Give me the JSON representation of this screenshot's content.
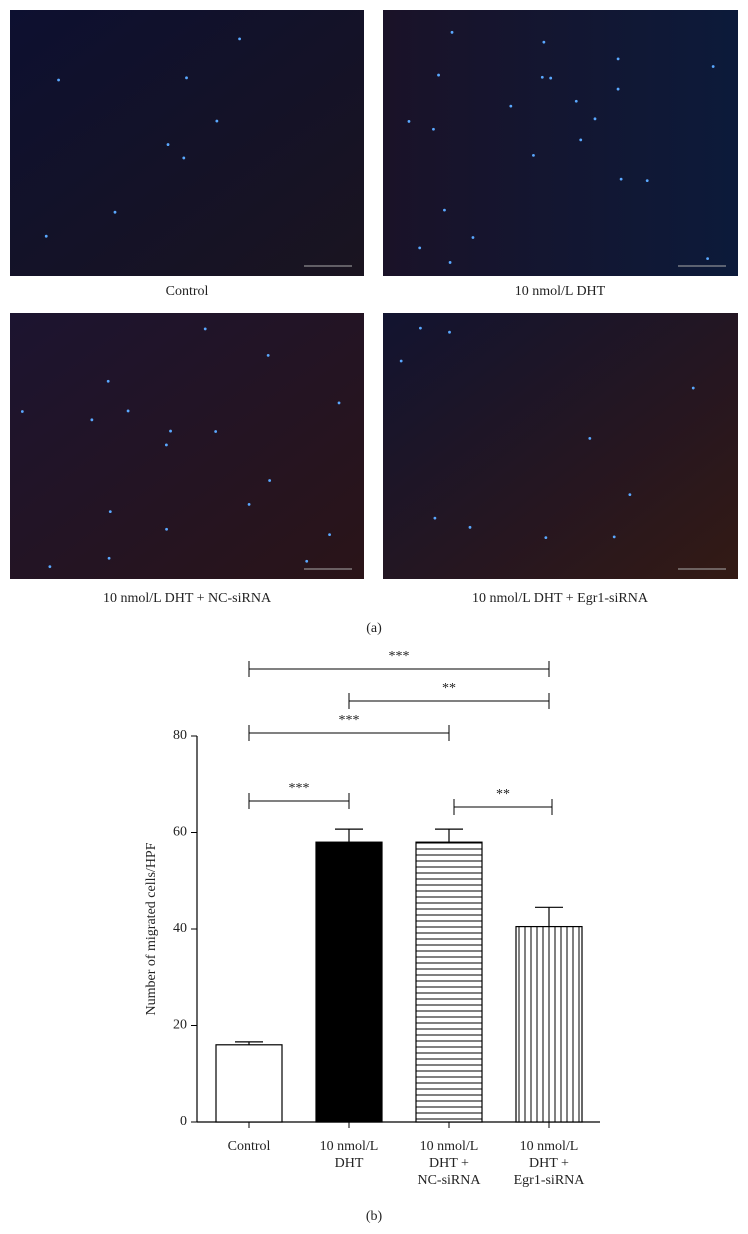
{
  "figure": {
    "panels": [
      "Control",
      "10 nmol/L DHT",
      "10 nmol/L DHT + NC-siRNA",
      "10 nmol/L DHT + Egr1-siRNA"
    ],
    "panel_label": "(a)"
  },
  "chart_data": {
    "type": "bar",
    "caption": "(b)",
    "y_label": "Number of migrated cells/HPF",
    "categories": [
      "Control",
      "10 nmol/L\nDHT",
      "10 nmol/L\nDHT +\nNC-siRNA",
      "10 nmol/L\nDHT +\nEgr1-siRNA"
    ],
    "values": [
      16,
      58,
      58,
      40.5
    ],
    "errors": [
      0.6,
      2.7,
      2.7,
      4
    ],
    "fills": [
      "white",
      "black",
      "horizontal",
      "vertical"
    ],
    "ylim": [
      0,
      80
    ],
    "yticks": [
      0,
      20,
      40,
      60,
      80
    ],
    "annotations": [
      "***",
      "**",
      "***",
      "***",
      "**"
    ]
  }
}
